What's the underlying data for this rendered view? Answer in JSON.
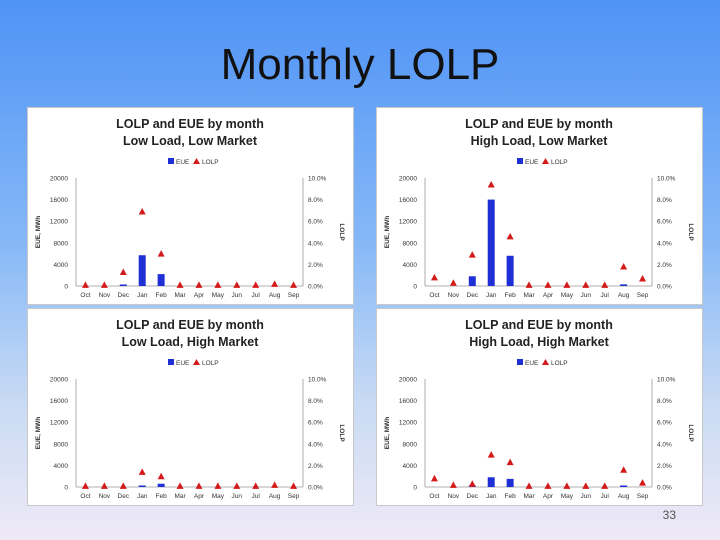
{
  "slide": {
    "title": "Monthly LOLP",
    "page_number": "33"
  },
  "colors": {
    "eue": "#1f2fd6",
    "lolp": "#d41a1a",
    "title_text": "#222222"
  },
  "chart_data": [
    {
      "type": "bar",
      "title": "LOLP and EUE by month",
      "subtitle": "Low Load, Low Market",
      "categories": [
        "Oct",
        "Nov",
        "Dec",
        "Jan",
        "Feb",
        "Mar",
        "Apr",
        "May",
        "Jun",
        "Jul",
        "Aug",
        "Sep"
      ],
      "series": [
        {
          "name": "EUE",
          "type": "bar",
          "axis": "left",
          "values": [
            0,
            0,
            250,
            5700,
            2200,
            0,
            0,
            0,
            0,
            0,
            0,
            0
          ]
        },
        {
          "name": "LOLP",
          "type": "scatter",
          "axis": "right",
          "values": [
            0.1,
            0.1,
            1.3,
            6.9,
            3.0,
            0.1,
            0.1,
            0.1,
            0.1,
            0.1,
            0.2,
            0.1
          ]
        }
      ],
      "ylabel": "EUE, MWh",
      "y2label": "LOLP",
      "ylim": [
        0,
        20000
      ],
      "y2lim": [
        0,
        10
      ],
      "yticks": [
        "0",
        "4000",
        "8000",
        "12000",
        "16000",
        "20000"
      ],
      "y2ticks": [
        "0.0%",
        "2.0%",
        "4.0%",
        "6.0%",
        "8.0%",
        "10.0%"
      ],
      "legend": "top-center"
    },
    {
      "type": "bar",
      "title": "LOLP and EUE by month",
      "subtitle": "High Load, Low Market",
      "categories": [
        "Oct",
        "Nov",
        "Dec",
        "Jan",
        "Feb",
        "Mar",
        "Apr",
        "May",
        "Jun",
        "Jul",
        "Aug",
        "Sep"
      ],
      "series": [
        {
          "name": "EUE",
          "type": "bar",
          "axis": "left",
          "values": [
            0,
            0,
            1800,
            16000,
            5600,
            0,
            0,
            0,
            0,
            0,
            300,
            0
          ]
        },
        {
          "name": "LOLP",
          "type": "scatter",
          "axis": "right",
          "values": [
            0.8,
            0.3,
            2.9,
            9.4,
            4.6,
            0.1,
            0.1,
            0.1,
            0.1,
            0.1,
            1.8,
            0.7
          ]
        }
      ],
      "ylabel": "EUE, MWh",
      "y2label": "LOLP",
      "ylim": [
        0,
        20000
      ],
      "y2lim": [
        0,
        10
      ],
      "yticks": [
        "0",
        "4000",
        "8000",
        "12000",
        "16000",
        "20000"
      ],
      "y2ticks": [
        "0.0%",
        "2.0%",
        "4.0%",
        "6.0%",
        "8.0%",
        "10.0%"
      ],
      "legend": "top-center"
    },
    {
      "type": "bar",
      "title": "LOLP and EUE by month",
      "subtitle": "Low Load, High Market",
      "categories": [
        "Oct",
        "Nov",
        "Dec",
        "Jan",
        "Feb",
        "Mar",
        "Apr",
        "May",
        "Jun",
        "Jul",
        "Aug",
        "Sep"
      ],
      "series": [
        {
          "name": "EUE",
          "type": "bar",
          "axis": "left",
          "values": [
            0,
            0,
            0,
            200,
            600,
            0,
            0,
            0,
            0,
            0,
            0,
            0
          ]
        },
        {
          "name": "LOLP",
          "type": "scatter",
          "axis": "right",
          "values": [
            0.1,
            0.1,
            0.1,
            1.4,
            1.0,
            0.1,
            0.1,
            0.1,
            0.1,
            0.1,
            0.2,
            0.1
          ]
        }
      ],
      "ylabel": "EUE, MWh",
      "y2label": "LOLP",
      "ylim": [
        0,
        20000
      ],
      "y2lim": [
        0,
        10
      ],
      "yticks": [
        "0",
        "4000",
        "8000",
        "12000",
        "16000",
        "20000"
      ],
      "y2ticks": [
        "0.0%",
        "2.0%",
        "4.0%",
        "6.0%",
        "8.0%",
        "10.0%"
      ],
      "legend": "top-center"
    },
    {
      "type": "bar",
      "title": "LOLP and EUE by month",
      "subtitle": "High Load, High Market",
      "categories": [
        "Oct",
        "Nov",
        "Dec",
        "Jan",
        "Feb",
        "Mar",
        "Apr",
        "May",
        "Jun",
        "Jul",
        "Aug",
        "Sep"
      ],
      "series": [
        {
          "name": "EUE",
          "type": "bar",
          "axis": "left",
          "values": [
            0,
            0,
            200,
            1800,
            1500,
            0,
            0,
            0,
            0,
            0,
            250,
            0
          ]
        },
        {
          "name": "LOLP",
          "type": "scatter",
          "axis": "right",
          "values": [
            0.8,
            0.2,
            0.3,
            3.0,
            2.3,
            0.1,
            0.1,
            0.1,
            0.1,
            0.1,
            1.6,
            0.4
          ]
        }
      ],
      "ylabel": "EUE, MWh",
      "y2label": "LOLP",
      "ylim": [
        0,
        20000
      ],
      "y2lim": [
        0,
        10
      ],
      "yticks": [
        "0",
        "4000",
        "8000",
        "12000",
        "16000",
        "20000"
      ],
      "y2ticks": [
        "0.0%",
        "2.0%",
        "4.0%",
        "6.0%",
        "8.0%",
        "10.0%"
      ],
      "legend": "top-center"
    }
  ]
}
